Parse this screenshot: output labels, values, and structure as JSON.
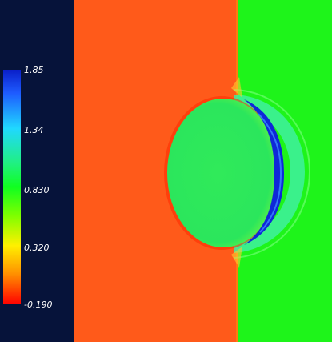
{
  "colorbar": {
    "labels": [
      "1.85",
      "1.34",
      "0.830",
      "0.320",
      "-0.190"
    ],
    "colors": {
      "max": "#0a1ec8",
      "high": "#20d8ff",
      "mid": "#10ff20",
      "low": "#fff000",
      "min": "#ff0000"
    }
  },
  "field": {
    "colors": {
      "left_region": "#ff5a1a",
      "right_region": "#1ef41a",
      "sphere": "#2ee85a",
      "shock_front": "#0f28d8",
      "background": "#06133a"
    }
  }
}
